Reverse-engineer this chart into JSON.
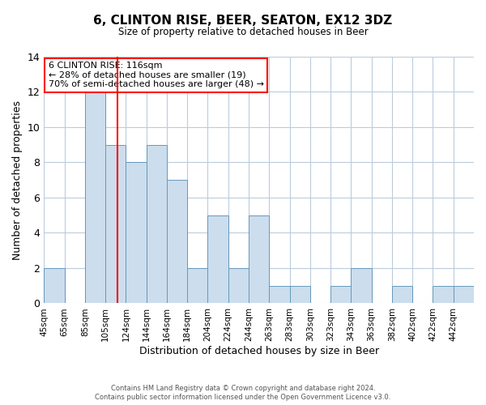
{
  "title": "6, CLINTON RISE, BEER, SEATON, EX12 3DZ",
  "subtitle": "Size of property relative to detached houses in Beer",
  "xlabel": "Distribution of detached houses by size in Beer",
  "ylabel": "Number of detached properties",
  "bin_labels": [
    "45sqm",
    "65sqm",
    "85sqm",
    "105sqm",
    "124sqm",
    "144sqm",
    "164sqm",
    "184sqm",
    "204sqm",
    "224sqm",
    "244sqm",
    "263sqm",
    "283sqm",
    "303sqm",
    "323sqm",
    "343sqm",
    "363sqm",
    "382sqm",
    "402sqm",
    "422sqm",
    "442sqm"
  ],
  "bar_heights": [
    2,
    0,
    12,
    9,
    8,
    9,
    7,
    2,
    5,
    2,
    5,
    1,
    1,
    0,
    1,
    2,
    0,
    1,
    0,
    1,
    1
  ],
  "bar_color": "#ccdded",
  "bar_edge_color": "#6699bb",
  "property_line_bin": 3,
  "ylim": [
    0,
    14
  ],
  "yticks": [
    0,
    2,
    4,
    6,
    8,
    10,
    12,
    14
  ],
  "annotation_title": "6 CLINTON RISE: 116sqm",
  "annotation_line1": "← 28% of detached houses are smaller (19)",
  "annotation_line2": "70% of semi-detached houses are larger (48) →",
  "footer1": "Contains HM Land Registry data © Crown copyright and database right 2024.",
  "footer2": "Contains public sector information licensed under the Open Government Licence v3.0.",
  "background_color": "#ffffff",
  "grid_color": "#bbccdd"
}
